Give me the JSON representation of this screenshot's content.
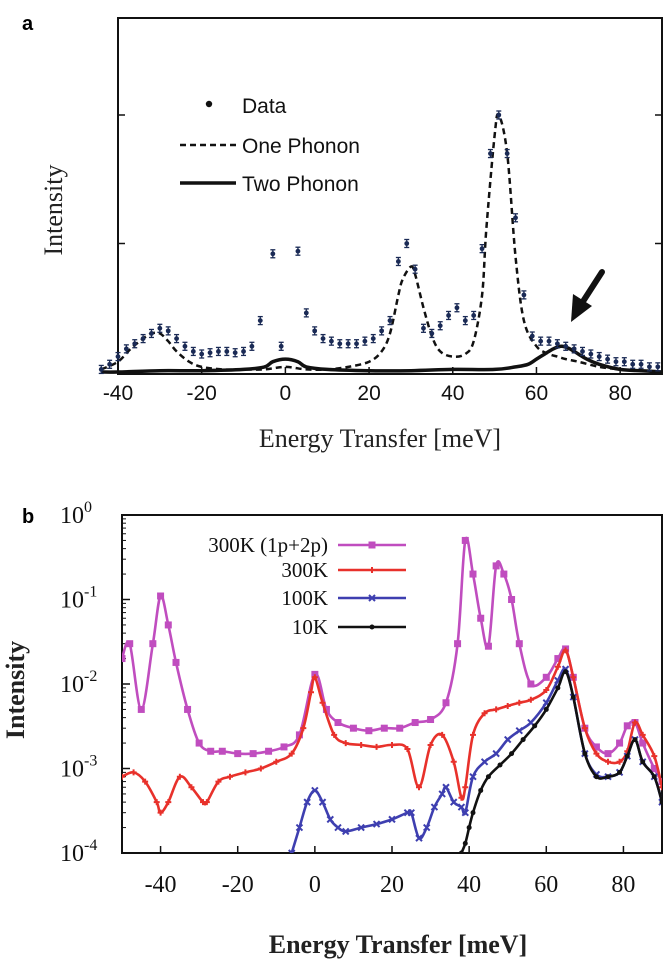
{
  "chart_data": [
    {
      "panel_label": "a",
      "type": "scatter",
      "xlabel": "Energy Transfer  [meV]",
      "ylabel": "Intensity",
      "xlim": [
        -40,
        90
      ],
      "ylim": [
        0,
        1.0
      ],
      "x_ticks": [
        -40,
        -20,
        0,
        20,
        40,
        60,
        80
      ],
      "y_tick_labels_shown": false,
      "grid": false,
      "legend_position": "top-left",
      "legend": [
        "Data",
        "One Phonon",
        "Two Phonon"
      ],
      "annotation": "arrow pointing at the peak near 65 meV",
      "series": [
        {
          "name": "Data",
          "style": "points with error bars",
          "x": [
            -44,
            -42,
            -40,
            -38,
            -36,
            -34,
            -32,
            -30,
            -28,
            -26,
            -24,
            -22,
            -20,
            -18,
            -16,
            -14,
            -12,
            -10,
            -8,
            -6,
            -3,
            -1,
            3,
            5,
            7,
            9,
            11,
            13,
            15,
            17,
            19,
            21,
            23,
            25,
            27,
            29,
            31,
            33,
            35,
            37,
            39,
            41,
            43,
            45,
            47,
            49,
            51,
            53,
            55,
            57,
            59,
            61,
            63,
            65,
            67,
            69,
            71,
            73,
            75,
            77,
            79,
            81,
            83,
            85,
            87,
            89
          ],
          "values": [
            0.01,
            0.03,
            0.06,
            0.09,
            0.11,
            0.13,
            0.15,
            0.17,
            0.16,
            0.13,
            0.1,
            0.08,
            0.07,
            0.075,
            0.08,
            0.08,
            0.075,
            0.08,
            0.1,
            0.2,
            0.46,
            0.1,
            0.47,
            0.23,
            0.16,
            0.13,
            0.12,
            0.11,
            0.11,
            0.11,
            0.12,
            0.13,
            0.16,
            0.2,
            0.43,
            0.5,
            0.4,
            0.17,
            0.15,
            0.18,
            0.22,
            0.25,
            0.2,
            0.22,
            0.48,
            0.85,
            1.0,
            0.85,
            0.6,
            0.3,
            0.14,
            0.12,
            0.12,
            0.11,
            0.1,
            0.09,
            0.08,
            0.07,
            0.06,
            0.05,
            0.04,
            0.04,
            0.03,
            0.03,
            0.02,
            0.02
          ]
        },
        {
          "name": "One Phonon",
          "style": "dashed line",
          "x": [
            -44,
            -40,
            -37,
            -34,
            -32,
            -30,
            -28,
            -26,
            -23,
            -20,
            -15,
            -10,
            -5,
            0,
            5,
            10,
            15,
            20,
            23,
            25,
            27,
            28,
            30,
            31,
            33,
            35,
            37,
            40,
            43,
            45,
            47,
            48,
            50,
            51,
            53,
            55,
            57,
            60,
            63,
            65,
            67,
            70,
            75,
            80,
            85,
            90
          ],
          "values": [
            0.01,
            0.04,
            0.09,
            0.13,
            0.15,
            0.15,
            0.12,
            0.08,
            0.04,
            0.02,
            0.01,
            0.01,
            0.01,
            0.02,
            0.01,
            0.01,
            0.02,
            0.04,
            0.08,
            0.15,
            0.3,
            0.36,
            0.41,
            0.38,
            0.25,
            0.14,
            0.08,
            0.06,
            0.07,
            0.12,
            0.3,
            0.55,
            0.92,
            1.0,
            0.85,
            0.45,
            0.2,
            0.1,
            0.07,
            0.06,
            0.05,
            0.04,
            0.02,
            0.01,
            0.005,
            0.0
          ]
        },
        {
          "name": "Two Phonon",
          "style": "solid line",
          "x": [
            -44,
            -40,
            -30,
            -20,
            -10,
            -5,
            -3,
            0,
            3,
            5,
            10,
            20,
            30,
            40,
            50,
            55,
            58,
            60,
            62,
            64,
            66,
            68,
            70,
            72,
            75,
            80,
            85,
            90
          ],
          "values": [
            0,
            0,
            0.005,
            0.005,
            0.01,
            0.02,
            0.04,
            0.05,
            0.04,
            0.02,
            0.01,
            0.005,
            0.005,
            0.01,
            0.01,
            0.02,
            0.03,
            0.05,
            0.07,
            0.09,
            0.1,
            0.09,
            0.07,
            0.05,
            0.03,
            0.01,
            0.005,
            0
          ]
        }
      ]
    },
    {
      "panel_label": "b",
      "type": "line",
      "xlabel": "Energy Transfer  [meV]",
      "ylabel": "Intensity",
      "xlim": [
        -50,
        90
      ],
      "ylim": [
        0.0001,
        1
      ],
      "y_scale": "log",
      "x_ticks": [
        -40,
        -20,
        0,
        20,
        40,
        60,
        80
      ],
      "y_ticks": [
        {
          "base": "10",
          "exp": "-4",
          "value": 0.0001
        },
        {
          "base": "10",
          "exp": "-3",
          "value": 0.001
        },
        {
          "base": "10",
          "exp": "-2",
          "value": 0.01
        },
        {
          "base": "10",
          "exp": "-1",
          "value": 0.1
        },
        {
          "base": "10",
          "exp": "0",
          "value": 1
        }
      ],
      "grid": false,
      "legend_position": "top-left",
      "series": [
        {
          "name": "300K (1p+2p)",
          "color": "#c04dbf",
          "marker": "square",
          "x": [
            -50,
            -48,
            -45,
            -42,
            -40,
            -38,
            -36,
            -33,
            -30,
            -27,
            -24,
            -20,
            -16,
            -12,
            -8,
            -4,
            0,
            3,
            6,
            10,
            14,
            18,
            22,
            26,
            30,
            34,
            37,
            39,
            41,
            43,
            45,
            47,
            49,
            51,
            53,
            56,
            60,
            63,
            65,
            67,
            70,
            73,
            76,
            79,
            81,
            83,
            85,
            88,
            90
          ],
          "values": [
            0.02,
            0.03,
            0.005,
            0.03,
            0.11,
            0.05,
            0.018,
            0.005,
            0.002,
            0.0016,
            0.0016,
            0.0015,
            0.0015,
            0.0016,
            0.0018,
            0.0025,
            0.013,
            0.005,
            0.0035,
            0.003,
            0.0028,
            0.003,
            0.003,
            0.0035,
            0.0038,
            0.006,
            0.03,
            0.5,
            0.2,
            0.06,
            0.028,
            0.25,
            0.2,
            0.1,
            0.03,
            0.01,
            0.012,
            0.02,
            0.026,
            0.012,
            0.003,
            0.0018,
            0.0015,
            0.002,
            0.0032,
            0.0035,
            0.002,
            0.001,
            0.0007
          ]
        },
        {
          "name": "300K",
          "color": "#e8312b",
          "marker": "plus",
          "x": [
            -50,
            -47,
            -44,
            -41,
            -40,
            -38,
            -35,
            -32,
            -29,
            -28,
            -25,
            -22,
            -18,
            -14,
            -10,
            -6,
            -3,
            -1,
            0,
            2,
            5,
            8,
            12,
            16,
            20,
            24,
            27,
            30,
            33,
            36,
            38,
            39,
            41,
            44,
            47,
            50,
            53,
            56,
            60,
            63,
            65,
            67,
            70,
            73,
            76,
            79,
            81,
            83,
            85,
            88,
            90
          ],
          "values": [
            0.0008,
            0.0009,
            0.0007,
            0.0004,
            0.0003,
            0.0004,
            0.0008,
            0.0006,
            0.0004,
            0.0004,
            0.0007,
            0.0008,
            0.0009,
            0.001,
            0.0012,
            0.0015,
            0.003,
            0.008,
            0.012,
            0.006,
            0.0025,
            0.002,
            0.0019,
            0.0018,
            0.0019,
            0.0017,
            0.0006,
            0.0019,
            0.0025,
            0.0012,
            0.00045,
            0.0006,
            0.0025,
            0.0045,
            0.005,
            0.0055,
            0.006,
            0.0065,
            0.0085,
            0.016,
            0.025,
            0.012,
            0.003,
            0.0015,
            0.0012,
            0.0012,
            0.0016,
            0.0035,
            0.0025,
            0.0014,
            0.0006
          ]
        },
        {
          "name": "100K",
          "color": "#3e3fb0",
          "marker": "x",
          "x": [
            -6,
            -4,
            -2,
            0,
            2,
            4,
            6,
            8,
            12,
            16,
            20,
            24,
            25,
            27,
            29,
            31,
            33,
            34,
            36,
            38,
            39,
            41,
            44,
            47,
            50,
            53,
            56,
            60,
            63,
            65,
            67,
            70,
            73,
            76,
            79,
            81,
            83,
            85,
            88,
            90
          ],
          "values": [
            0.0001,
            0.0002,
            0.0004,
            0.00055,
            0.0004,
            0.00025,
            0.0002,
            0.00018,
            0.0002,
            0.00022,
            0.00025,
            0.0003,
            0.0003,
            0.00015,
            0.0002,
            0.00035,
            0.0005,
            0.0006,
            0.0004,
            0.00035,
            0.0003,
            0.0008,
            0.0012,
            0.0015,
            0.0022,
            0.0028,
            0.0035,
            0.006,
            0.011,
            0.015,
            0.007,
            0.0015,
            0.00085,
            0.0008,
            0.0009,
            0.0014,
            0.0022,
            0.0012,
            0.0008,
            0.0004
          ]
        },
        {
          "name": "10K",
          "color": "#111111",
          "marker": "dot",
          "x": [
            38,
            39,
            40,
            41,
            43,
            45,
            48,
            51,
            54,
            57,
            60,
            63,
            65,
            67,
            70,
            73,
            76,
            79,
            81,
            83,
            85,
            88,
            90
          ],
          "values": [
            0.0001,
            0.00013,
            0.0002,
            0.0003,
            0.00055,
            0.0008,
            0.0011,
            0.0015,
            0.0022,
            0.0032,
            0.005,
            0.009,
            0.014,
            0.007,
            0.0015,
            0.0008,
            0.0008,
            0.0009,
            0.0014,
            0.0022,
            0.0012,
            0.0008,
            0.0004
          ]
        }
      ]
    }
  ]
}
